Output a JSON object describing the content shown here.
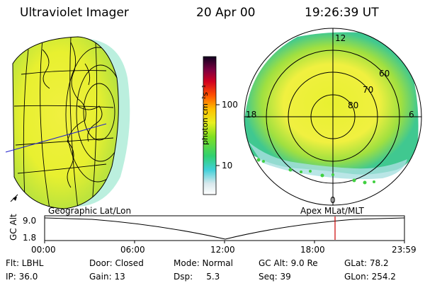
{
  "header": {
    "title": "Ultraviolet Imager",
    "date": "20 Apr 00",
    "time": "19:26:39 UT"
  },
  "colorbar": {
    "unit_label": "photon cm⁻²s⁻¹",
    "ticks": [
      "100",
      "10"
    ]
  },
  "polar_plot": {
    "mlt_labels": {
      "top": "12",
      "left": "18",
      "right": "6",
      "bottom": "0"
    },
    "lat_labels": [
      "60",
      "70",
      "80"
    ]
  },
  "projections": {
    "left": "Geographic Lat/Lon",
    "right": "Apex MLat/MLT"
  },
  "orbit_plot": {
    "ylabel": "GC Alt",
    "yticks": [
      "9.0",
      "1.8"
    ],
    "xticks": [
      "00:00",
      "06:00",
      "12:00",
      "18:00",
      "23:59"
    ],
    "marker_color": "#cc0000"
  },
  "info": {
    "flt": "Flt: LBHL",
    "door": "Door: Closed",
    "mode": "Mode: Normal",
    "gc_alt": "GC Alt: 9.0 Re",
    "glat": "GLat:  78.2",
    "ip": "IP: 36.0",
    "gain": "Gain: 13",
    "dsp": "Dsp:     5.3",
    "seq": "Seq: 39",
    "glon": "GLon: 254.2"
  }
}
